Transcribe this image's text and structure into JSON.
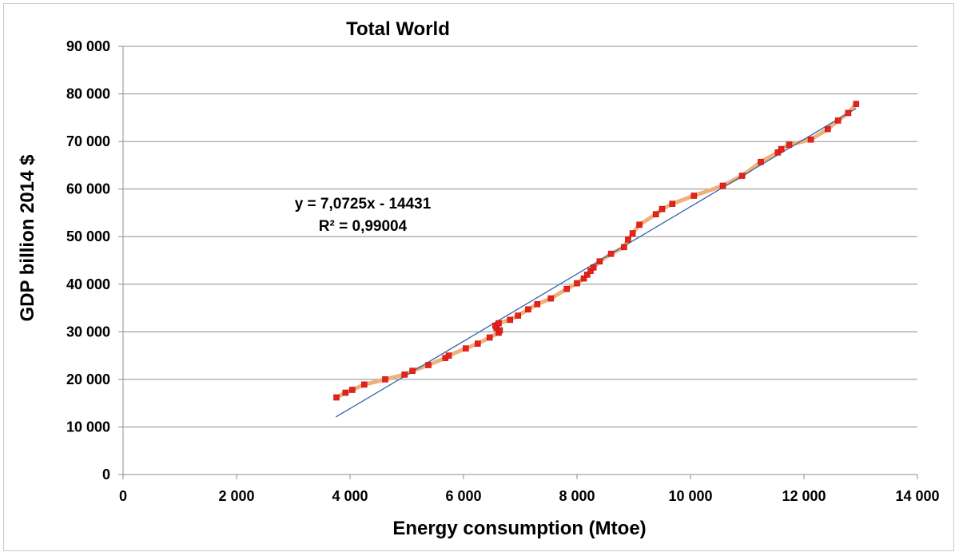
{
  "chart_data": {
    "type": "scatter",
    "title": "Total World",
    "xlabel": "Energy consumption (Mtoe)",
    "ylabel": "GDP billion 2014 $",
    "xlim": [
      0,
      14000
    ],
    "ylim": [
      0,
      90000
    ],
    "x_ticks": [
      0,
      2000,
      4000,
      6000,
      8000,
      10000,
      12000,
      14000
    ],
    "x_tick_labels": [
      "0",
      "2 000",
      "4 000",
      "6 000",
      "8 000",
      "10 000",
      "12 000",
      "14 000"
    ],
    "y_ticks": [
      0,
      10000,
      20000,
      30000,
      40000,
      50000,
      60000,
      70000,
      80000,
      90000
    ],
    "y_tick_labels": [
      "0",
      "10 000",
      "20 000",
      "30 000",
      "40 000",
      "50 000",
      "60 000",
      "70 000",
      "80 000",
      "90 000"
    ],
    "grid": "horizontal",
    "series": [
      {
        "name": "Total World",
        "color": "#e8211a",
        "line_color": "#f0b07a",
        "points": [
          [
            3760,
            16200
          ],
          [
            3920,
            17200
          ],
          [
            4040,
            17800
          ],
          [
            4250,
            18900
          ],
          [
            4620,
            20000
          ],
          [
            4960,
            21000
          ],
          [
            5100,
            21800
          ],
          [
            5380,
            23000
          ],
          [
            5680,
            24500
          ],
          [
            5740,
            25000
          ],
          [
            6040,
            26500
          ],
          [
            6250,
            27500
          ],
          [
            6460,
            28800
          ],
          [
            6620,
            29800
          ],
          [
            6640,
            30300
          ],
          [
            6580,
            30800
          ],
          [
            6560,
            31300
          ],
          [
            6620,
            31800
          ],
          [
            6820,
            32500
          ],
          [
            6960,
            33400
          ],
          [
            7140,
            34700
          ],
          [
            7300,
            35800
          ],
          [
            7540,
            37000
          ],
          [
            7820,
            39000
          ],
          [
            8000,
            40200
          ],
          [
            8120,
            41200
          ],
          [
            8180,
            42000
          ],
          [
            8240,
            42800
          ],
          [
            8290,
            43500
          ],
          [
            8400,
            44800
          ],
          [
            8600,
            46400
          ],
          [
            8830,
            47800
          ],
          [
            8900,
            49400
          ],
          [
            8980,
            50700
          ],
          [
            9100,
            52500
          ],
          [
            9390,
            54700
          ],
          [
            9500,
            55800
          ],
          [
            9680,
            56900
          ],
          [
            10060,
            58600
          ],
          [
            10570,
            60700
          ],
          [
            10910,
            62800
          ],
          [
            11240,
            65700
          ],
          [
            11540,
            67700
          ],
          [
            11600,
            68400
          ],
          [
            11740,
            69300
          ],
          [
            12120,
            70400
          ],
          [
            12420,
            72600
          ],
          [
            12600,
            74400
          ],
          [
            12780,
            76000
          ],
          [
            12920,
            77900
          ]
        ]
      }
    ],
    "trendline": {
      "type": "linear",
      "slope": 7.0725,
      "intercept": -14431,
      "x_range": [
        3750,
        12920
      ],
      "color": "#3366aa",
      "equation_label": "y = 7,0725x - 14431",
      "r2_label": "R² = 0,99004"
    }
  }
}
